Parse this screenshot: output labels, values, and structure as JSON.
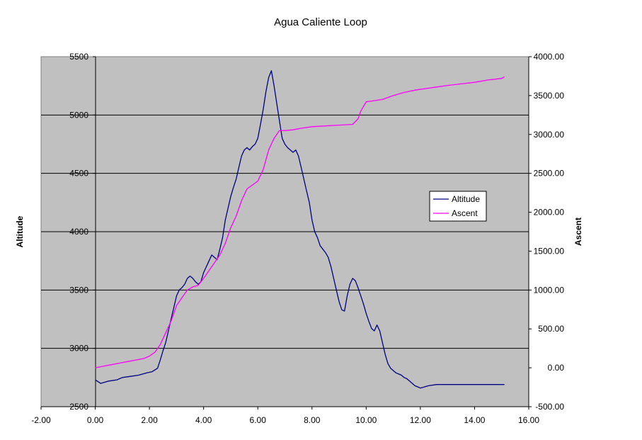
{
  "chart_data": {
    "type": "line",
    "title": "Agua Caliente Loop",
    "xlabel": "",
    "ylabel": "Altitude",
    "y2label": "Ascent",
    "xlim": [
      -2,
      16
    ],
    "ylim": [
      2500,
      5500
    ],
    "y2lim": [
      -500,
      4000
    ],
    "x_ticks": [
      "-2.00",
      "0.00",
      "2.00",
      "4.00",
      "6.00",
      "8.00",
      "10.00",
      "12.00",
      "14.00",
      "16.00"
    ],
    "y_ticks": [
      "2500",
      "3000",
      "3500",
      "4000",
      "4500",
      "5000",
      "5500"
    ],
    "y2_ticks": [
      "-500.00",
      "0.00",
      "500.00",
      "1000.00",
      "1500.00",
      "2000.00",
      "2500.00",
      "3000.00",
      "3500.00",
      "4000.00"
    ],
    "grid": "horizontal major gridlines",
    "plot_background": "#C0C0C0",
    "legend": "right",
    "series": [
      {
        "name": "Altitude",
        "axis": "left",
        "color": "#000080",
        "x": [
          0,
          0.2,
          0.5,
          0.8,
          1.0,
          1.3,
          1.6,
          1.9,
          2.1,
          2.3,
          2.4,
          2.5,
          2.6,
          2.7,
          2.8,
          2.9,
          3.0,
          3.1,
          3.2,
          3.3,
          3.4,
          3.5,
          3.6,
          3.7,
          3.8,
          3.9,
          4.0,
          4.1,
          4.2,
          4.3,
          4.4,
          4.5,
          4.6,
          4.7,
          4.8,
          4.9,
          5.0,
          5.1,
          5.2,
          5.3,
          5.4,
          5.5,
          5.6,
          5.7,
          5.8,
          5.9,
          6.0,
          6.1,
          6.2,
          6.3,
          6.4,
          6.5,
          6.6,
          6.7,
          6.8,
          6.9,
          7.0,
          7.1,
          7.2,
          7.3,
          7.4,
          7.5,
          7.6,
          7.7,
          7.8,
          7.9,
          8.0,
          8.1,
          8.2,
          8.3,
          8.4,
          8.5,
          8.6,
          8.7,
          8.8,
          8.9,
          9.0,
          9.1,
          9.2,
          9.3,
          9.4,
          9.5,
          9.6,
          9.7,
          9.8,
          9.9,
          10.0,
          10.1,
          10.2,
          10.3,
          10.4,
          10.5,
          10.6,
          10.7,
          10.8,
          10.9,
          11.0,
          11.1,
          11.2,
          11.3,
          11.4,
          11.5,
          11.6,
          11.7,
          11.8,
          11.9,
          12.0,
          12.3,
          12.6,
          12.9,
          13.2,
          13.5,
          13.8,
          14.1,
          14.4,
          14.7,
          15.0,
          15.1
        ],
        "y": [
          2730,
          2700,
          2720,
          2730,
          2750,
          2760,
          2770,
          2790,
          2800,
          2830,
          2900,
          2980,
          3050,
          3150,
          3250,
          3350,
          3450,
          3500,
          3520,
          3550,
          3600,
          3620,
          3600,
          3570,
          3550,
          3570,
          3650,
          3700,
          3750,
          3800,
          3780,
          3760,
          3850,
          3950,
          4100,
          4200,
          4300,
          4380,
          4450,
          4550,
          4650,
          4700,
          4720,
          4700,
          4730,
          4750,
          4800,
          4920,
          5050,
          5200,
          5320,
          5380,
          5250,
          5100,
          4950,
          4800,
          4750,
          4720,
          4700,
          4680,
          4700,
          4650,
          4550,
          4450,
          4350,
          4250,
          4100,
          4000,
          3950,
          3880,
          3850,
          3820,
          3780,
          3700,
          3600,
          3500,
          3400,
          3330,
          3320,
          3450,
          3550,
          3600,
          3580,
          3520,
          3450,
          3380,
          3300,
          3230,
          3170,
          3150,
          3200,
          3150,
          3050,
          2950,
          2870,
          2830,
          2810,
          2790,
          2780,
          2770,
          2750,
          2740,
          2720,
          2700,
          2680,
          2670,
          2660,
          2680,
          2690,
          2690,
          2690,
          2690,
          2690,
          2690,
          2690,
          2690,
          2690,
          2690
        ]
      },
      {
        "name": "Ascent",
        "axis": "right",
        "color": "#FF00FF",
        "x": [
          0,
          0.3,
          0.6,
          0.9,
          1.2,
          1.5,
          1.8,
          2.0,
          2.2,
          2.4,
          2.6,
          2.8,
          3.0,
          3.2,
          3.4,
          3.6,
          3.8,
          4.0,
          4.2,
          4.4,
          4.6,
          4.8,
          5.0,
          5.2,
          5.4,
          5.6,
          5.8,
          6.0,
          6.2,
          6.4,
          6.6,
          6.8,
          7.0,
          7.3,
          7.6,
          8.0,
          8.5,
          9.0,
          9.5,
          9.7,
          9.8,
          10.0,
          10.2,
          10.6,
          11.0,
          11.4,
          11.8,
          12.2,
          12.6,
          13.0,
          13.5,
          14.0,
          14.5,
          15.0,
          15.1
        ],
        "y": [
          0,
          20,
          40,
          60,
          80,
          100,
          120,
          150,
          200,
          300,
          450,
          600,
          800,
          900,
          1000,
          1040,
          1060,
          1150,
          1250,
          1350,
          1450,
          1600,
          1800,
          1950,
          2150,
          2300,
          2350,
          2400,
          2550,
          2800,
          2950,
          3050,
          3050,
          3060,
          3080,
          3100,
          3110,
          3120,
          3130,
          3200,
          3300,
          3420,
          3430,
          3450,
          3500,
          3540,
          3570,
          3590,
          3610,
          3630,
          3650,
          3670,
          3700,
          3720,
          3740
        ]
      }
    ]
  }
}
